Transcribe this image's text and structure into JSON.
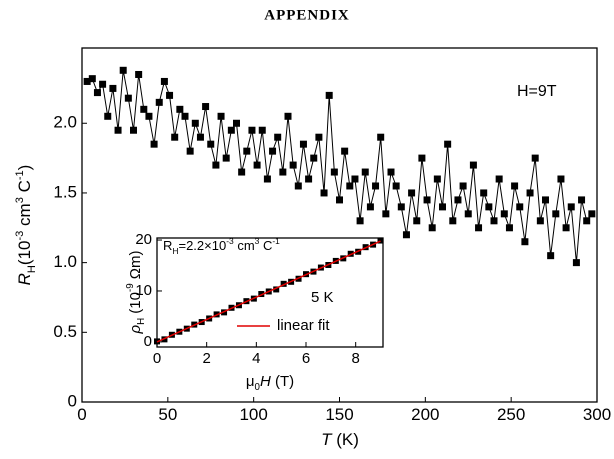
{
  "heading": "APPENDIX",
  "chart_data": [
    {
      "type": "line",
      "x_label": [
        {
          "t": "T",
          "s": "i"
        },
        {
          "t": " (K)"
        }
      ],
      "y_label": [
        {
          "t": "R",
          "s": "i"
        },
        {
          "t": "H",
          "s": "sub"
        },
        {
          "t": "(10"
        },
        {
          "t": "-3",
          "s": "sup"
        },
        {
          "t": " cm"
        },
        {
          "t": "3",
          "s": "sup"
        },
        {
          "t": " C"
        },
        {
          "t": "-1",
          "s": "sup"
        },
        {
          "t": ")"
        }
      ],
      "annotation": "H=9T",
      "xlim": [
        0,
        300
      ],
      "ylim": [
        0,
        2.54
      ],
      "xticks": [
        0,
        50,
        100,
        150,
        200,
        250,
        300
      ],
      "yticks": [
        0,
        0.5,
        {
          "value": 1,
          "label": "1.0"
        },
        1.5,
        {
          "value": 2,
          "label": "2.0"
        }
      ],
      "x": [
        3,
        6,
        9,
        12,
        15,
        18,
        21,
        24,
        27,
        30,
        33,
        36,
        39,
        42,
        45,
        48,
        51,
        54,
        57,
        60,
        63,
        66,
        69,
        72,
        75,
        78,
        81,
        84,
        87,
        90,
        93,
        96,
        99,
        102,
        105,
        108,
        111,
        114,
        117,
        120,
        123,
        126,
        129,
        132,
        135,
        138,
        141,
        144,
        147,
        150,
        153,
        156,
        159,
        162,
        165,
        168,
        171,
        174,
        177,
        180,
        183,
        186,
        189,
        192,
        195,
        198,
        201,
        204,
        207,
        210,
        213,
        216,
        219,
        222,
        225,
        228,
        231,
        234,
        237,
        240,
        243,
        246,
        249,
        252,
        255,
        258,
        261,
        264,
        267,
        270,
        273,
        276,
        279,
        282,
        285,
        288,
        291,
        294,
        297
      ],
      "series": [
        {
          "color": "#000000",
          "marker": "square",
          "line": true,
          "values": [
            2.3,
            2.32,
            2.22,
            2.28,
            2.05,
            2.25,
            1.95,
            2.38,
            2.18,
            1.95,
            2.35,
            2.1,
            2.05,
            1.85,
            2.15,
            2.3,
            2.2,
            1.9,
            2.1,
            2.05,
            1.8,
            2.0,
            1.9,
            2.12,
            1.85,
            1.7,
            2.05,
            1.75,
            1.95,
            2.0,
            1.65,
            1.8,
            1.95,
            1.7,
            1.95,
            1.6,
            1.8,
            1.9,
            1.65,
            2.05,
            1.7,
            1.55,
            1.85,
            1.6,
            1.75,
            1.9,
            1.5,
            2.2,
            1.65,
            1.45,
            1.8,
            1.55,
            1.6,
            1.3,
            1.65,
            1.4,
            1.55,
            1.9,
            1.35,
            1.65,
            1.55,
            1.4,
            1.2,
            1.5,
            1.3,
            1.75,
            1.45,
            1.25,
            1.6,
            1.4,
            1.85,
            1.3,
            1.45,
            1.55,
            1.35,
            1.7,
            1.25,
            1.5,
            1.4,
            1.3,
            1.6,
            1.35,
            1.25,
            1.55,
            1.4,
            1.15,
            1.5,
            1.75,
            1.3,
            1.45,
            1.05,
            1.35,
            1.6,
            1.25,
            1.4,
            1.0,
            1.45,
            1.3,
            1.35
          ]
        }
      ]
    },
    {
      "type": "line",
      "x_label": [
        {
          "t": "μ"
        },
        {
          "t": "0",
          "s": "sub"
        },
        {
          "t": "H",
          "s": "i"
        },
        {
          "t": " (T)"
        }
      ],
      "y_label": [
        {
          "t": "ρ",
          "s": "i"
        },
        {
          "t": "H",
          "s": "sub"
        },
        {
          "t": " (10"
        },
        {
          "t": "-9",
          "s": "sup"
        },
        {
          "t": " Ωm)"
        }
      ],
      "annotation": [
        {
          "t": "R"
        },
        {
          "t": "H",
          "s": "sub"
        },
        {
          "t": "=2.2×10"
        },
        {
          "t": "-3",
          "s": "sup"
        },
        {
          "t": " cm"
        },
        {
          "t": "3",
          "s": "sup"
        },
        {
          "t": " C"
        },
        {
          "t": "-1",
          "s": "sup"
        }
      ],
      "temperature": "5 K",
      "xlim": [
        0,
        9.1
      ],
      "ylim": [
        -1,
        20.4
      ],
      "xticks": [
        0,
        2,
        4,
        6,
        8
      ],
      "yticks": [
        0,
        10,
        20
      ],
      "x": [
        0,
        0.3,
        0.6,
        0.9,
        1.2,
        1.5,
        1.8,
        2.1,
        2.4,
        2.7,
        3.0,
        3.3,
        3.6,
        3.9,
        4.2,
        4.5,
        4.8,
        5.1,
        5.4,
        5.7,
        6.0,
        6.3,
        6.6,
        6.9,
        7.2,
        7.5,
        7.8,
        8.1,
        8.4,
        8.7,
        9.0
      ],
      "series": [
        {
          "color": "#000000",
          "marker": "square",
          "line": false,
          "values": [
            0.1,
            0.5,
            1.4,
            2.0,
            2.6,
            3.4,
            3.9,
            4.6,
            5.4,
            5.8,
            6.7,
            7.2,
            8.0,
            8.5,
            9.4,
            9.9,
            10.3,
            11.4,
            11.8,
            12.4,
            13.3,
            13.8,
            14.6,
            15.1,
            15.9,
            16.4,
            17.3,
            17.7,
            18.6,
            19.1,
            19.9
          ]
        }
      ],
      "fit": {
        "name": "linear fit",
        "color": "#e00000",
        "x": [
          0,
          9
        ],
        "values": [
          0,
          19.8
        ]
      }
    }
  ]
}
